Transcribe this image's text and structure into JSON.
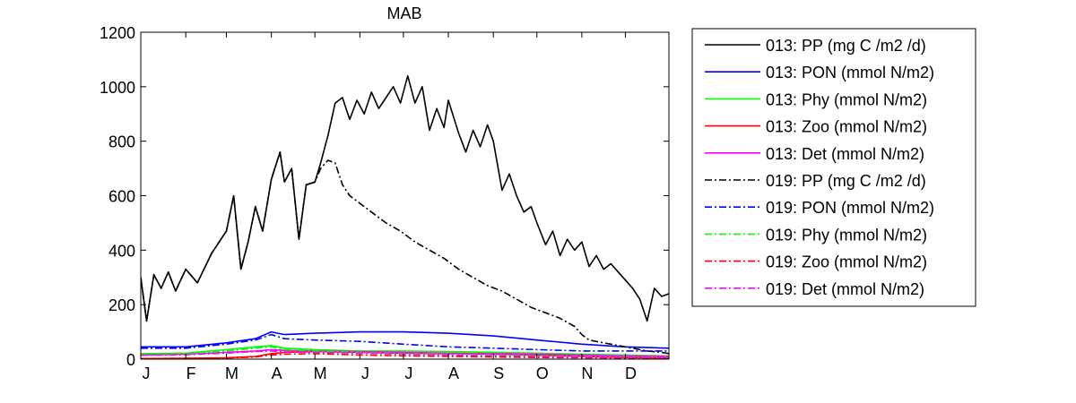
{
  "chart_data": {
    "type": "line",
    "title": "MAB",
    "xlabel": "",
    "ylabel": "",
    "ylim": [
      0,
      1200
    ],
    "yticks": [
      0,
      200,
      400,
      600,
      800,
      1000,
      1200
    ],
    "ytick_labels": [
      "0",
      "200",
      "400",
      "600",
      "800",
      "1000",
      "1200"
    ],
    "xlim": [
      1,
      365
    ],
    "xticks": [
      1,
      32,
      60,
      91,
      121,
      152,
      182,
      213,
      244,
      274,
      305,
      335
    ],
    "xtick_labels": [
      "J",
      "F",
      "M",
      "A",
      "M",
      "J",
      "J",
      "A",
      "S",
      "O",
      "N",
      "D"
    ],
    "grid": false,
    "legend_position": "outside-right",
    "series": [
      {
        "name": "013: PP (mg C /m2 /d)",
        "color": "#000000",
        "style": "solid",
        "x": [
          1,
          5,
          10,
          15,
          20,
          25,
          32,
          40,
          50,
          60,
          65,
          70,
          75,
          80,
          85,
          91,
          97,
          100,
          105,
          110,
          115,
          121,
          125,
          130,
          135,
          140,
          145,
          150,
          155,
          160,
          165,
          170,
          175,
          180,
          185,
          190,
          195,
          200,
          205,
          210,
          213,
          220,
          225,
          230,
          235,
          240,
          244,
          250,
          255,
          260,
          265,
          270,
          274,
          280,
          285,
          290,
          295,
          300,
          305,
          310,
          315,
          320,
          325,
          330,
          335,
          340,
          345,
          350,
          355,
          360,
          365
        ],
        "y": [
          300,
          140,
          310,
          260,
          320,
          250,
          330,
          280,
          390,
          470,
          600,
          330,
          430,
          560,
          470,
          660,
          760,
          650,
          700,
          440,
          640,
          650,
          720,
          820,
          940,
          960,
          880,
          950,
          900,
          980,
          920,
          960,
          1000,
          940,
          1040,
          940,
          1000,
          840,
          920,
          850,
          950,
          830,
          760,
          840,
          780,
          860,
          800,
          620,
          680,
          600,
          540,
          560,
          500,
          420,
          470,
          380,
          440,
          400,
          430,
          340,
          380,
          330,
          350,
          320,
          290,
          260,
          220,
          140,
          260,
          230,
          240
        ]
      },
      {
        "name": "013: PON (mmol N/m2)",
        "color": "#0000ff",
        "style": "solid",
        "x": [
          1,
          32,
          60,
          80,
          91,
          100,
          121,
          152,
          182,
          213,
          244,
          274,
          305,
          335,
          365
        ],
        "y": [
          45,
          45,
          60,
          75,
          100,
          90,
          95,
          100,
          100,
          95,
          85,
          70,
          55,
          45,
          40
        ]
      },
      {
        "name": "013: Phy (mmol N/m2)",
        "color": "#00ff00",
        "style": "solid",
        "x": [
          1,
          32,
          60,
          80,
          91,
          100,
          121,
          152,
          182,
          213,
          244,
          274,
          305,
          335,
          365
        ],
        "y": [
          20,
          22,
          35,
          45,
          50,
          40,
          35,
          30,
          30,
          28,
          25,
          22,
          18,
          15,
          12
        ]
      },
      {
        "name": "013: Zoo (mmol N/m2)",
        "color": "#ff0000",
        "style": "solid",
        "x": [
          1,
          32,
          60,
          80,
          91,
          100,
          121,
          152,
          182,
          213,
          244,
          274,
          305,
          335,
          365
        ],
        "y": [
          2,
          3,
          5,
          10,
          20,
          25,
          28,
          25,
          22,
          20,
          18,
          15,
          10,
          6,
          4
        ]
      },
      {
        "name": "013: Det (mmol N/m2)",
        "color": "#ff00ff",
        "style": "solid",
        "x": [
          1,
          32,
          60,
          80,
          91,
          100,
          121,
          152,
          182,
          213,
          244,
          274,
          305,
          335,
          365
        ],
        "y": [
          15,
          18,
          25,
          30,
          35,
          32,
          30,
          28,
          25,
          22,
          20,
          18,
          15,
          12,
          10
        ]
      },
      {
        "name": "019: PP (mg C /m2 /d)",
        "color": "#000000",
        "style": "dashdot",
        "x": [
          1,
          5,
          10,
          15,
          20,
          25,
          32,
          40,
          50,
          60,
          65,
          70,
          75,
          80,
          85,
          91,
          97,
          100,
          105,
          110,
          115,
          121,
          125,
          130,
          135,
          140,
          145,
          150,
          160,
          170,
          180,
          190,
          200,
          210,
          220,
          230,
          240,
          250,
          260,
          270,
          280,
          290,
          300,
          305,
          310,
          320,
          330,
          340,
          350,
          360,
          365
        ],
        "y": [
          300,
          140,
          310,
          260,
          320,
          250,
          330,
          280,
          390,
          470,
          600,
          330,
          430,
          560,
          470,
          660,
          760,
          650,
          700,
          440,
          640,
          650,
          700,
          730,
          720,
          640,
          600,
          580,
          540,
          500,
          470,
          430,
          400,
          370,
          330,
          300,
          270,
          250,
          220,
          190,
          170,
          150,
          120,
          90,
          70,
          60,
          50,
          40,
          30,
          25,
          20
        ]
      },
      {
        "name": "019: PON (mmol N/m2)",
        "color": "#0000ff",
        "style": "dashdot",
        "x": [
          1,
          32,
          60,
          80,
          91,
          100,
          121,
          152,
          182,
          213,
          244,
          274,
          305,
          335,
          365
        ],
        "y": [
          40,
          40,
          55,
          70,
          90,
          75,
          70,
          65,
          55,
          45,
          40,
          35,
          30,
          30,
          30
        ]
      },
      {
        "name": "019: Phy (mmol N/m2)",
        "color": "#00ff00",
        "style": "dashdot",
        "x": [
          1,
          32,
          60,
          80,
          91,
          100,
          121,
          152,
          182,
          213,
          244,
          274,
          305,
          335,
          365
        ],
        "y": [
          18,
          20,
          30,
          40,
          45,
          35,
          30,
          25,
          20,
          18,
          15,
          12,
          10,
          8,
          6
        ]
      },
      {
        "name": "019: Zoo (mmol N/m2)",
        "color": "#ff0000",
        "style": "dashdot",
        "x": [
          1,
          32,
          60,
          80,
          91,
          100,
          121,
          152,
          182,
          213,
          244,
          274,
          305,
          335,
          365
        ],
        "y": [
          2,
          3,
          4,
          8,
          15,
          18,
          20,
          15,
          12,
          10,
          8,
          6,
          5,
          4,
          3
        ]
      },
      {
        "name": "019: Det (mmol N/m2)",
        "color": "#ff00ff",
        "style": "dashdot",
        "x": [
          1,
          32,
          60,
          80,
          91,
          100,
          121,
          152,
          182,
          213,
          244,
          274,
          305,
          335,
          365
        ],
        "y": [
          14,
          16,
          22,
          28,
          30,
          27,
          25,
          22,
          18,
          15,
          12,
          10,
          8,
          7,
          6
        ]
      }
    ]
  }
}
